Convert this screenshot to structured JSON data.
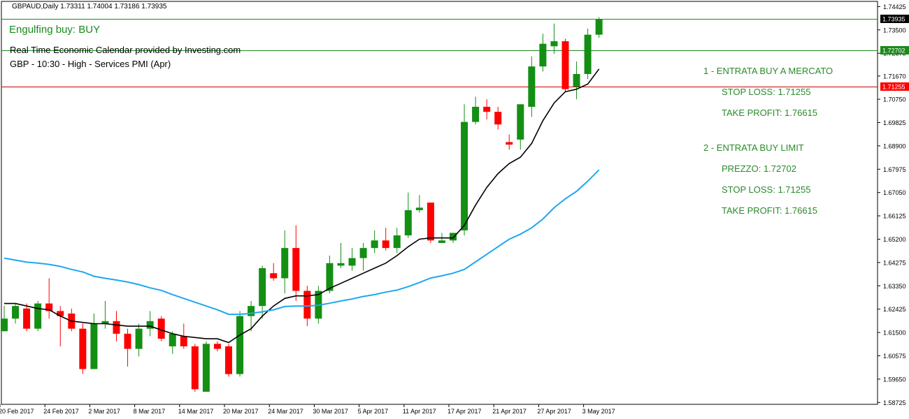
{
  "header": {
    "symbol_info": "GBPAUD,Daily  1.73311 1.74004 1.73186 1.73935",
    "signal": "Engulfing buy: BUY",
    "calendar_title": "Real Time Economic Calendar provided by Investing.com",
    "calendar_event": "GBP - 10:30 - High - Services PMI (Apr)"
  },
  "notes": [
    "1 - ENTRATA BUY A MERCATO",
    "STOP LOSS: 1.71255",
    "TAKE PROFIT: 1.76615",
    "2 - ENTRATA BUY LIMIT",
    "PREZZO: 1.72702",
    "STOP LOSS: 1.71255",
    "TAKE PROFIT: 1.76615"
  ],
  "colors": {
    "bull": "#138f13",
    "bear": "#ff0000",
    "ma_fast": "#000000",
    "ma_slow": "#1ea8f0",
    "price_line": "#1a8a1a",
    "stop_line": "#cc0000"
  },
  "chart_data": {
    "type": "candlestick",
    "title": "GBPAUD,Daily",
    "ylim": [
      1.5865,
      1.7463
    ],
    "y_ticks": [
      "1.74425",
      "1.73500",
      "1.72575",
      "1.71670",
      "1.70750",
      "1.69825",
      "1.68900",
      "1.67975",
      "1.67050",
      "1.66125",
      "1.65200",
      "1.64275",
      "1.63350",
      "1.62425",
      "1.61500",
      "1.60575",
      "1.59650",
      "1.58725"
    ],
    "x_labels": [
      "20 Feb 2017",
      "24 Feb 2017",
      "2 Mar 2017",
      "8 Mar 2017",
      "14 Mar 2017",
      "20 Mar 2017",
      "24 Mar 2017",
      "30 Mar 2017",
      "5 Apr 2017",
      "11 Apr 2017",
      "17 Apr 2017",
      "21 Apr 2017",
      "27 Apr 2017",
      "3 May 2017"
    ],
    "x_label_index": [
      0,
      4,
      8,
      12,
      16,
      20,
      24,
      28,
      32,
      36,
      40,
      44,
      48,
      52
    ],
    "price_lines": [
      {
        "value": 1.73935,
        "label": "1.73935",
        "color": "#1a8a1a",
        "badge": "#000000"
      },
      {
        "value": 1.72702,
        "label": "1.72702",
        "color": "#1a8a1a",
        "badge": "#1a8a1a"
      },
      {
        "value": 1.71255,
        "label": "1.71255",
        "color": "#cc0000",
        "badge": "#ff0000"
      }
    ],
    "candles": [
      {
        "o": 1.6155,
        "h": 1.6255,
        "l": 1.6155,
        "c": 1.6205
      },
      {
        "o": 1.6205,
        "h": 1.6265,
        "l": 1.6185,
        "c": 1.6255
      },
      {
        "o": 1.6245,
        "h": 1.6265,
        "l": 1.6155,
        "c": 1.6165
      },
      {
        "o": 1.6165,
        "h": 1.6275,
        "l": 1.6155,
        "c": 1.6265
      },
      {
        "o": 1.6265,
        "h": 1.6365,
        "l": 1.6205,
        "c": 1.6235
      },
      {
        "o": 1.6235,
        "h": 1.6255,
        "l": 1.6095,
        "c": 1.6215
      },
      {
        "o": 1.6225,
        "h": 1.6245,
        "l": 1.6155,
        "c": 1.6165
      },
      {
        "o": 1.6165,
        "h": 1.6185,
        "l": 1.5985,
        "c": 1.6005
      },
      {
        "o": 1.6005,
        "h": 1.6225,
        "l": 1.6005,
        "c": 1.6185
      },
      {
        "o": 1.6185,
        "h": 1.6275,
        "l": 1.6165,
        "c": 1.6195
      },
      {
        "o": 1.6195,
        "h": 1.6235,
        "l": 1.6115,
        "c": 1.6145
      },
      {
        "o": 1.6145,
        "h": 1.6165,
        "l": 1.6015,
        "c": 1.6085
      },
      {
        "o": 1.6085,
        "h": 1.6185,
        "l": 1.6055,
        "c": 1.6165
      },
      {
        "o": 1.6165,
        "h": 1.6235,
        "l": 1.6135,
        "c": 1.6195
      },
      {
        "o": 1.6205,
        "h": 1.6215,
        "l": 1.6115,
        "c": 1.6125
      },
      {
        "o": 1.6095,
        "h": 1.6155,
        "l": 1.6065,
        "c": 1.6145
      },
      {
        "o": 1.6135,
        "h": 1.6185,
        "l": 1.6085,
        "c": 1.6095
      },
      {
        "o": 1.6095,
        "h": 1.6105,
        "l": 1.5915,
        "c": 1.5925
      },
      {
        "o": 1.5915,
        "h": 1.6115,
        "l": 1.5915,
        "c": 1.6105
      },
      {
        "o": 1.6105,
        "h": 1.6115,
        "l": 1.6075,
        "c": 1.6085
      },
      {
        "o": 1.6095,
        "h": 1.6105,
        "l": 1.5975,
        "c": 1.5985
      },
      {
        "o": 1.5985,
        "h": 1.6235,
        "l": 1.5975,
        "c": 1.6215
      },
      {
        "o": 1.6215,
        "h": 1.6275,
        "l": 1.6155,
        "c": 1.6255
      },
      {
        "o": 1.6255,
        "h": 1.6415,
        "l": 1.6205,
        "c": 1.6405
      },
      {
        "o": 1.6385,
        "h": 1.6425,
        "l": 1.6355,
        "c": 1.6365
      },
      {
        "o": 1.6365,
        "h": 1.6555,
        "l": 1.6305,
        "c": 1.6485
      },
      {
        "o": 1.6485,
        "h": 1.6575,
        "l": 1.6275,
        "c": 1.6315
      },
      {
        "o": 1.6315,
        "h": 1.6335,
        "l": 1.6175,
        "c": 1.6205
      },
      {
        "o": 1.6205,
        "h": 1.6335,
        "l": 1.6185,
        "c": 1.6315
      },
      {
        "o": 1.6315,
        "h": 1.6455,
        "l": 1.6305,
        "c": 1.6425
      },
      {
        "o": 1.6415,
        "h": 1.6505,
        "l": 1.6405,
        "c": 1.6425
      },
      {
        "o": 1.6415,
        "h": 1.6485,
        "l": 1.6395,
        "c": 1.6445
      },
      {
        "o": 1.6445,
        "h": 1.6505,
        "l": 1.6395,
        "c": 1.6485
      },
      {
        "o": 1.6485,
        "h": 1.6555,
        "l": 1.6465,
        "c": 1.6515
      },
      {
        "o": 1.6515,
        "h": 1.6565,
        "l": 1.6475,
        "c": 1.6485
      },
      {
        "o": 1.6485,
        "h": 1.6565,
        "l": 1.6465,
        "c": 1.6535
      },
      {
        "o": 1.6535,
        "h": 1.6705,
        "l": 1.6525,
        "c": 1.6635
      },
      {
        "o": 1.6635,
        "h": 1.6695,
        "l": 1.6625,
        "c": 1.6645
      },
      {
        "o": 1.6665,
        "h": 1.6665,
        "l": 1.6505,
        "c": 1.6515
      },
      {
        "o": 1.6505,
        "h": 1.6545,
        "l": 1.6505,
        "c": 1.6515
      },
      {
        "o": 1.6515,
        "h": 1.6535,
        "l": 1.6505,
        "c": 1.6545
      },
      {
        "o": 1.6555,
        "h": 1.7055,
        "l": 1.6535,
        "c": 1.6985
      },
      {
        "o": 1.6985,
        "h": 1.7085,
        "l": 1.6975,
        "c": 1.7045
      },
      {
        "o": 1.7045,
        "h": 1.7075,
        "l": 1.6995,
        "c": 1.7025
      },
      {
        "o": 1.7025,
        "h": 1.7045,
        "l": 1.6955,
        "c": 1.6975
      },
      {
        "o": 1.6905,
        "h": 1.6935,
        "l": 1.6875,
        "c": 1.6895
      },
      {
        "o": 1.6915,
        "h": 1.7055,
        "l": 1.6875,
        "c": 1.7055
      },
      {
        "o": 1.7045,
        "h": 1.7245,
        "l": 1.7005,
        "c": 1.7205
      },
      {
        "o": 1.7205,
        "h": 1.7335,
        "l": 1.7185,
        "c": 1.7295
      },
      {
        "o": 1.7285,
        "h": 1.7375,
        "l": 1.7255,
        "c": 1.7305
      },
      {
        "o": 1.7305,
        "h": 1.7315,
        "l": 1.7105,
        "c": 1.7115
      },
      {
        "o": 1.7125,
        "h": 1.7225,
        "l": 1.7075,
        "c": 1.7175
      },
      {
        "o": 1.7175,
        "h": 1.7355,
        "l": 1.7155,
        "c": 1.7331
      },
      {
        "o": 1.7331,
        "h": 1.74004,
        "l": 1.73186,
        "c": 1.73935
      }
    ],
    "series": [
      {
        "kind": "moving-average",
        "color": "#000000",
        "values": [
          1.6265,
          1.6265,
          1.6255,
          1.6245,
          1.624,
          1.6215,
          1.6195,
          1.619,
          1.6185,
          1.6185,
          1.618,
          1.6175,
          1.6175,
          1.6175,
          1.616,
          1.6145,
          1.6135,
          1.613,
          1.6125,
          1.6125,
          1.611,
          1.614,
          1.6165,
          1.6215,
          1.6255,
          1.6285,
          1.6295,
          1.6295,
          1.63,
          1.6325,
          1.6345,
          1.6365,
          1.6385,
          1.6405,
          1.6425,
          1.6455,
          1.649,
          1.652,
          1.6525,
          1.6525,
          1.6525,
          1.6575,
          1.6655,
          1.6725,
          1.678,
          1.682,
          1.6845,
          1.69,
          1.699,
          1.706,
          1.7105,
          1.7115,
          1.7135,
          1.7195
        ]
      },
      {
        "kind": "moving-average",
        "color": "#1ea8f0",
        "values": [
          1.6445,
          1.6437,
          1.6429,
          1.6425,
          1.642,
          1.6412,
          1.64,
          1.639,
          1.6373,
          1.6365,
          1.6358,
          1.635,
          1.634,
          1.6327,
          1.6317,
          1.63,
          1.6285,
          1.627,
          1.6255,
          1.624,
          1.6222,
          1.6222,
          1.6226,
          1.6232,
          1.624,
          1.6253,
          1.6255,
          1.6255,
          1.6258,
          1.6266,
          1.6275,
          1.6283,
          1.6293,
          1.63,
          1.631,
          1.6318,
          1.6332,
          1.6348,
          1.6366,
          1.6375,
          1.6385,
          1.64,
          1.643,
          1.646,
          1.649,
          1.652,
          1.654,
          1.6565,
          1.66,
          1.6645,
          1.668,
          1.671,
          1.675,
          1.6795
        ]
      }
    ]
  }
}
